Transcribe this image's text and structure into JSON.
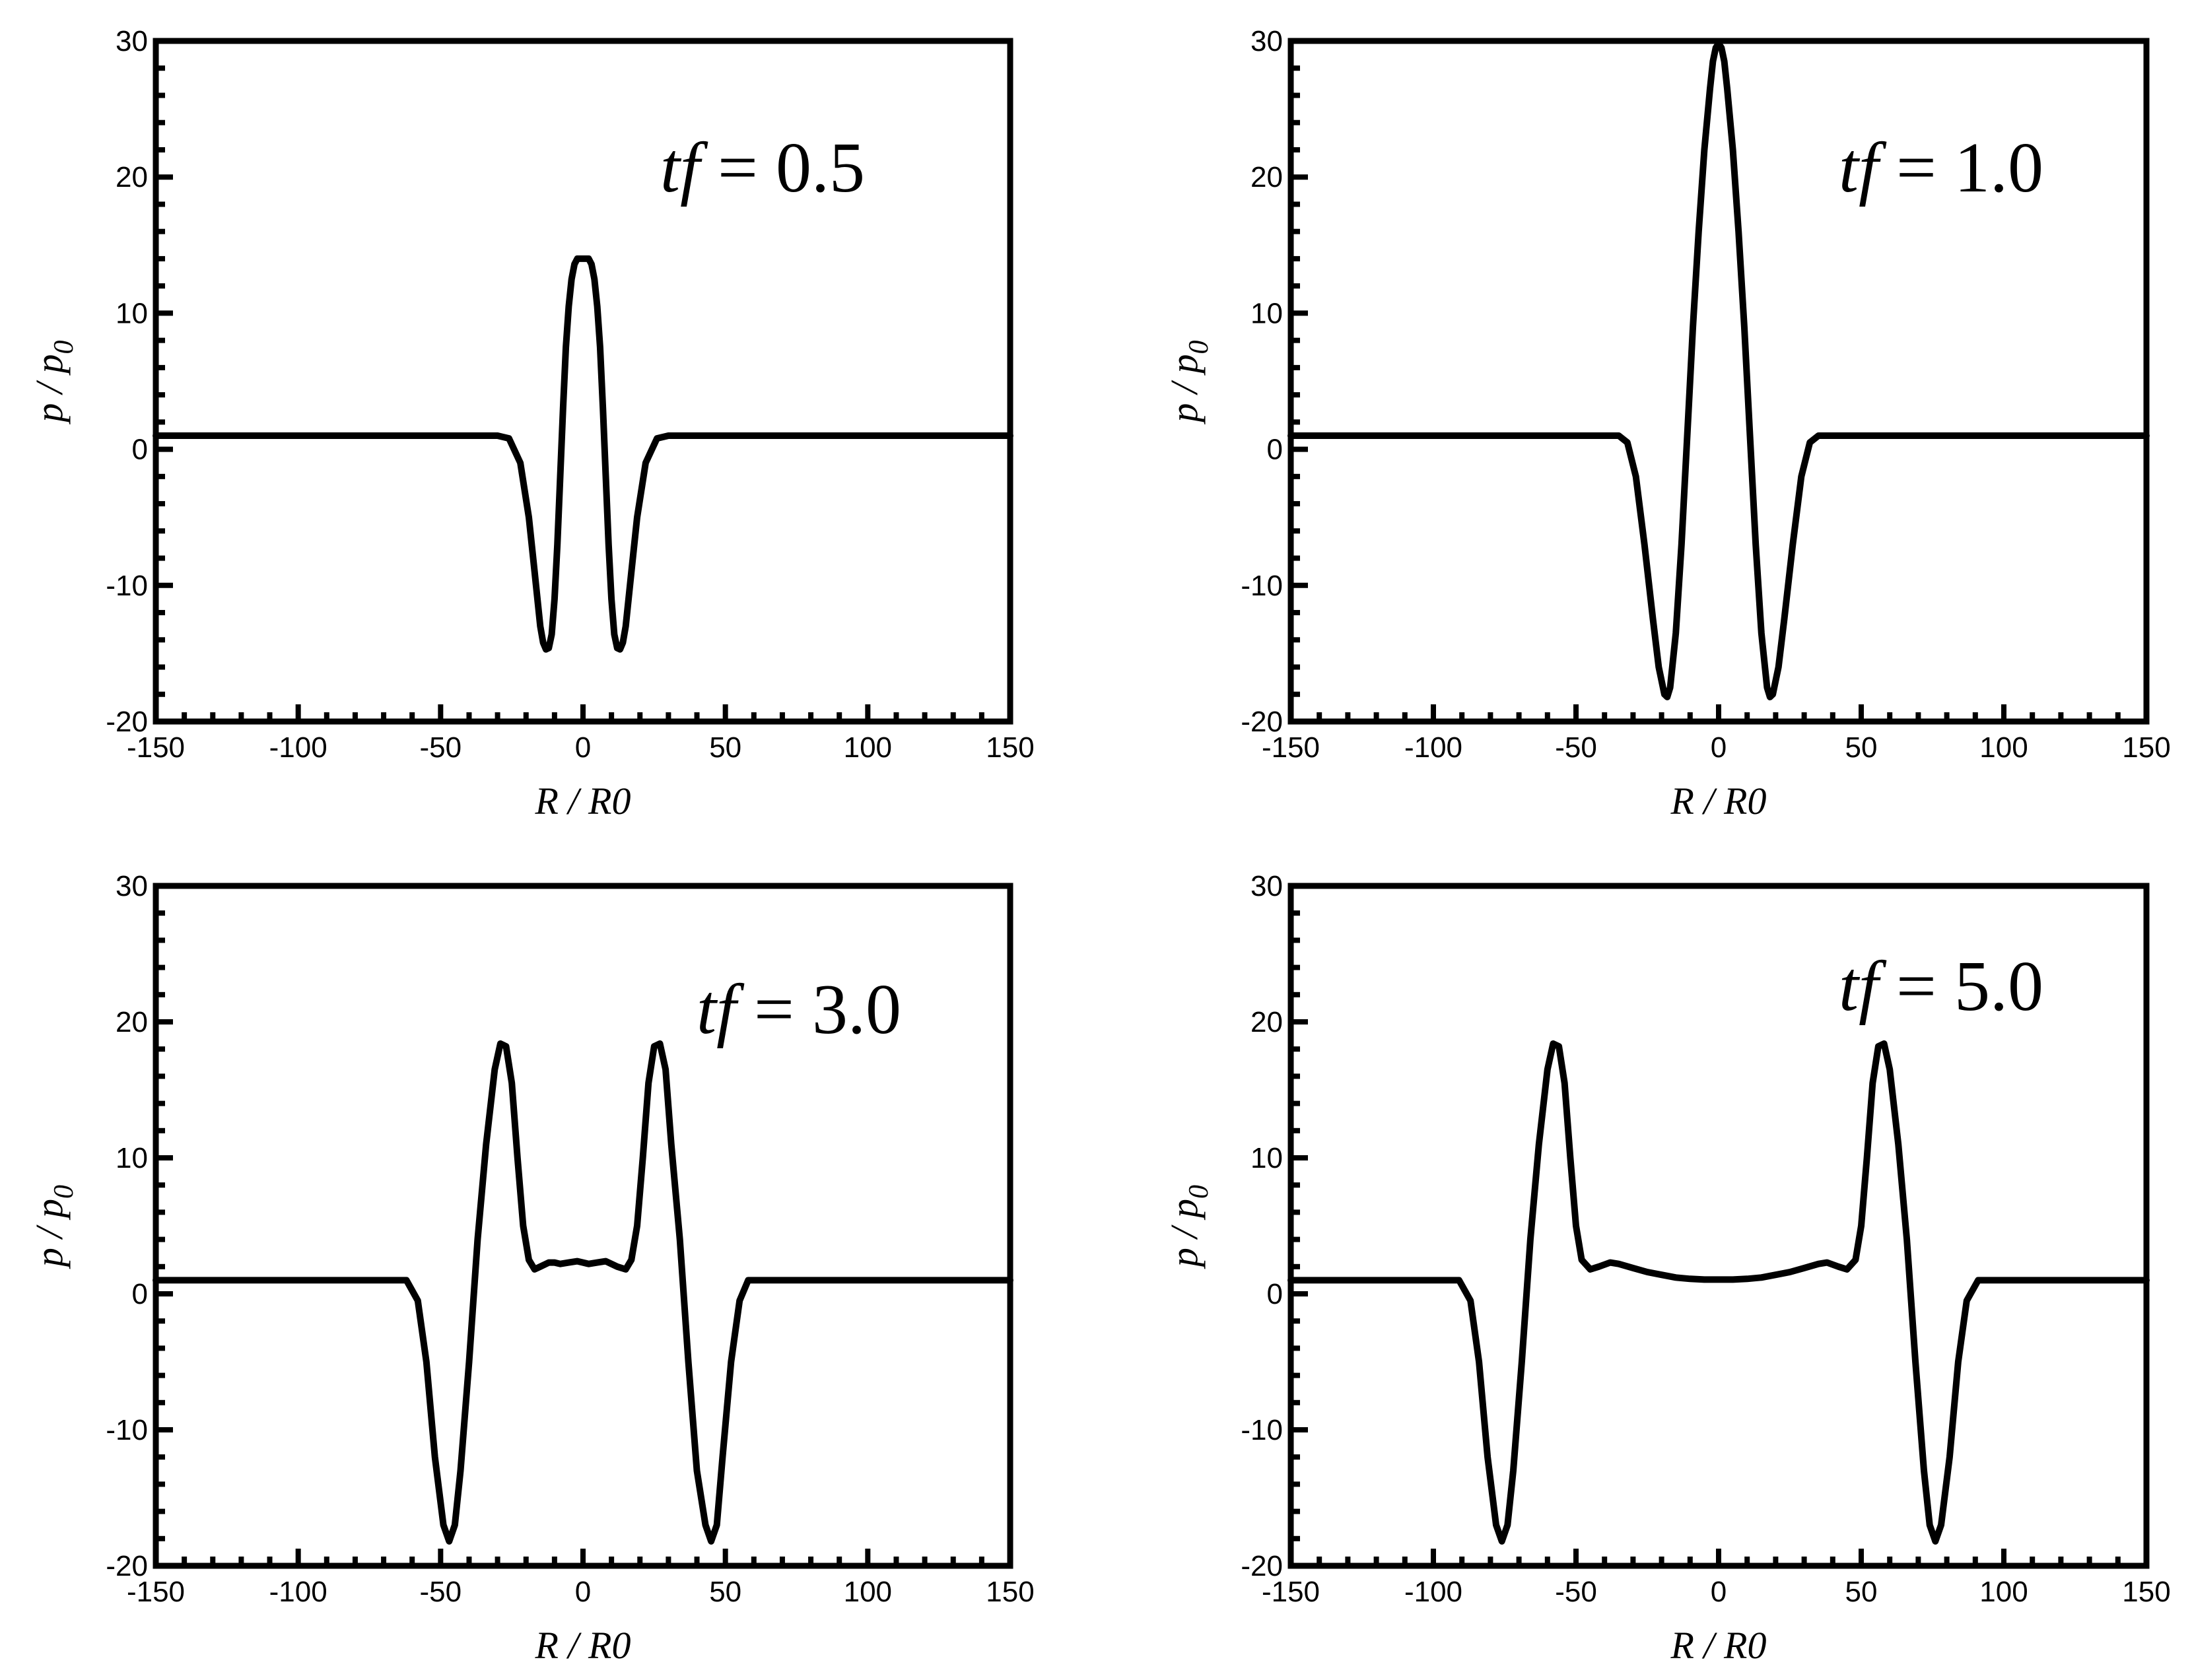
{
  "chart_data": [
    {
      "type": "line",
      "annotation": {
        "var": "tf",
        "eq": " = ",
        "value": "0.5"
      },
      "xlabel": "R / R0",
      "ylabel": {
        "a": "p",
        "sep": " / ",
        "b": "p",
        "sub": "0"
      },
      "xlim": [
        -150,
        150
      ],
      "ylim": [
        -20,
        30
      ],
      "xticks": [
        -150,
        -100,
        -50,
        0,
        50,
        100,
        150
      ],
      "yticks": [
        -20,
        -10,
        0,
        10,
        20,
        30
      ],
      "grid": false,
      "line_color": "#000000",
      "series": [
        {
          "x": [
            -150,
            -30,
            -26,
            -22,
            -19,
            -17,
            -15,
            -14,
            -13,
            -12,
            -11,
            -10,
            -9,
            -8,
            -7,
            -6,
            -5,
            -4,
            -3,
            -2,
            -1,
            0,
            1,
            2,
            3,
            4,
            5,
            6,
            7,
            8,
            9,
            10,
            11,
            12,
            13,
            14,
            15,
            17,
            19,
            22,
            26,
            30,
            150
          ],
          "y": [
            1,
            1,
            0.8,
            -1,
            -5,
            -9,
            -13,
            -14.2,
            -14.7,
            -14.6,
            -13.6,
            -11,
            -7,
            -2,
            3,
            7.5,
            10.5,
            12.5,
            13.6,
            14,
            14,
            14,
            14,
            14,
            13.6,
            12.5,
            10.5,
            7.5,
            3,
            -2,
            -7,
            -11,
            -13.6,
            -14.6,
            -14.7,
            -14.2,
            -13,
            -9,
            -5,
            -1,
            0.8,
            1,
            1
          ]
        }
      ]
    },
    {
      "type": "line",
      "annotation": {
        "var": "tf",
        "eq": " = ",
        "value": "1.0"
      },
      "xlabel": "R / R0",
      "ylabel": {
        "a": "p",
        "sep": " / ",
        "b": "p",
        "sub": "0"
      },
      "xlim": [
        -150,
        150
      ],
      "ylim": [
        -20,
        30
      ],
      "xticks": [
        -150,
        -100,
        -50,
        0,
        50,
        100,
        150
      ],
      "yticks": [
        -20,
        -10,
        0,
        10,
        20,
        30
      ],
      "grid": false,
      "line_color": "#000000",
      "series": [
        {
          "x": [
            -150,
            -35,
            -32,
            -29,
            -26,
            -23,
            -21,
            -19,
            -18,
            -17,
            -15,
            -13,
            -11,
            -9,
            -7,
            -5,
            -3,
            -2,
            -1,
            0,
            1,
            2,
            3,
            5,
            7,
            9,
            11,
            13,
            15,
            17,
            18,
            19,
            21,
            23,
            26,
            29,
            32,
            35,
            150
          ],
          "y": [
            1,
            1,
            0.5,
            -2,
            -7,
            -12.5,
            -16,
            -18,
            -18.2,
            -17.5,
            -13.5,
            -7,
            1,
            9,
            16,
            22,
            26.5,
            28.5,
            29.5,
            29.8,
            29.5,
            28.5,
            26.5,
            22,
            16,
            9,
            1,
            -7,
            -13.5,
            -17.5,
            -18.2,
            -18,
            -16,
            -12.5,
            -7,
            -2,
            0.5,
            1,
            1
          ]
        }
      ]
    },
    {
      "type": "line",
      "annotation": {
        "var": "tf",
        "eq": " = ",
        "value": "3.0"
      },
      "xlabel": "R / R0",
      "ylabel": {
        "a": "p",
        "sep": " / ",
        "b": "p",
        "sub": "0"
      },
      "xlim": [
        -150,
        150
      ],
      "ylim": [
        -20,
        30
      ],
      "xticks": [
        -150,
        -100,
        -50,
        0,
        50,
        100,
        150
      ],
      "yticks": [
        -20,
        -10,
        0,
        10,
        20,
        30
      ],
      "grid": false,
      "line_color": "#000000",
      "series": [
        {
          "x": [
            -150,
            -62,
            -58,
            -55,
            -52,
            -49,
            -47,
            -45,
            -43,
            -40,
            -37,
            -34,
            -31,
            -29,
            -27,
            -25,
            -23,
            -21,
            -19,
            -17,
            -15,
            -12,
            -10,
            -8,
            -5,
            -2,
            0,
            2,
            5,
            8,
            10,
            12,
            15,
            17,
            19,
            21,
            23,
            25,
            27,
            29,
            31,
            34,
            37,
            40,
            43,
            45,
            47,
            49,
            52,
            55,
            58,
            62,
            150
          ],
          "y": [
            1,
            1,
            -0.5,
            -5,
            -12,
            -17,
            -18.2,
            -17,
            -13,
            -5,
            4,
            11,
            16.5,
            18.4,
            18.2,
            15.5,
            10,
            5,
            2.5,
            1.8,
            2,
            2.3,
            2.3,
            2.2,
            2.3,
            2.4,
            2.3,
            2.2,
            2.3,
            2.4,
            2.2,
            2,
            1.8,
            2.5,
            5,
            10,
            15.5,
            18.2,
            18.4,
            16.5,
            11,
            4,
            -5,
            -13,
            -17,
            -18.2,
            -17,
            -12,
            -5,
            -0.5,
            1,
            1,
            1
          ]
        }
      ]
    },
    {
      "type": "line",
      "annotation": {
        "var": "tf",
        "eq": " = ",
        "value": "5.0"
      },
      "xlabel": "R / R0",
      "ylabel": {
        "a": "p",
        "sep": " / ",
        "b": "p",
        "sub": "0"
      },
      "xlim": [
        -150,
        150
      ],
      "ylim": [
        -20,
        30
      ],
      "xticks": [
        -150,
        -100,
        -50,
        0,
        50,
        100,
        150
      ],
      "yticks": [
        -20,
        -10,
        0,
        10,
        20,
        30
      ],
      "grid": false,
      "line_color": "#000000",
      "series": [
        {
          "x": [
            -150,
            -91,
            -87,
            -84,
            -81,
            -78,
            -76,
            -74,
            -72,
            -69,
            -66,
            -63,
            -60,
            -58,
            -56,
            -54,
            -52,
            -50,
            -48,
            -45,
            -42,
            -38,
            -35,
            -30,
            -25,
            -20,
            -15,
            -10,
            -5,
            0,
            5,
            10,
            15,
            20,
            25,
            30,
            35,
            38,
            42,
            45,
            48,
            50,
            52,
            54,
            56,
            58,
            60,
            63,
            66,
            69,
            72,
            74,
            76,
            78,
            81,
            84,
            87,
            91,
            150
          ],
          "y": [
            1,
            1,
            -0.5,
            -5,
            -12,
            -17,
            -18.2,
            -17,
            -13,
            -5,
            4,
            11,
            16.5,
            18.4,
            18.2,
            15.5,
            10,
            5,
            2.5,
            1.8,
            2,
            2.3,
            2.2,
            1.9,
            1.6,
            1.4,
            1.2,
            1.1,
            1.05,
            1.05,
            1.05,
            1.1,
            1.2,
            1.4,
            1.6,
            1.9,
            2.2,
            2.3,
            2,
            1.8,
            2.5,
            5,
            10,
            15.5,
            18.2,
            18.4,
            16.5,
            11,
            4,
            -5,
            -13,
            -17,
            -18.2,
            -17,
            -12,
            -5,
            -0.5,
            1,
            1
          ]
        }
      ]
    }
  ]
}
